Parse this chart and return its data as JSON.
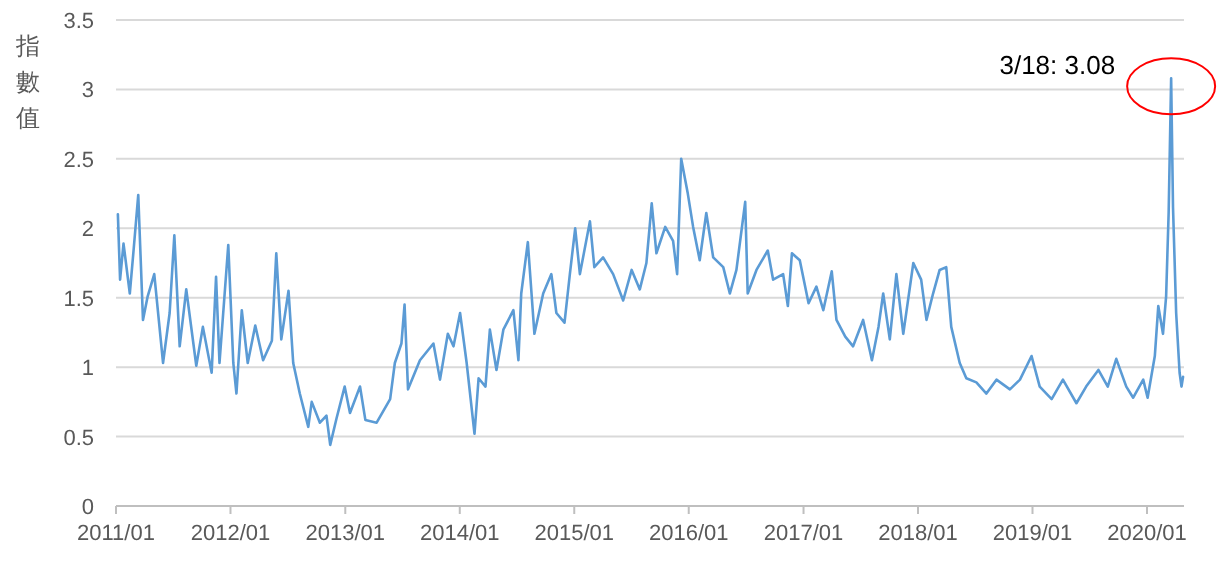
{
  "chart_data": {
    "type": "line",
    "ylabel": "指數值",
    "x": [
      "2011-01-07",
      "2011-01-14",
      "2011-01-25",
      "2011-02-14",
      "2011-02-26",
      "2011-03-13",
      "2011-03-28",
      "2011-04-12",
      "2011-05-03",
      "2011-05-31",
      "2011-06-21",
      "2011-07-06",
      "2011-07-23",
      "2011-08-13",
      "2011-09-14",
      "2011-10-05",
      "2011-11-02",
      "2011-11-16",
      "2011-11-27",
      "2011-12-25",
      "2012-01-10",
      "2012-01-20",
      "2012-02-06",
      "2012-02-25",
      "2012-03-20",
      "2012-04-14",
      "2012-05-12",
      "2012-05-26",
      "2012-06-11",
      "2012-07-04",
      "2012-07-19",
      "2012-08-09",
      "2012-09-05",
      "2012-09-16",
      "2012-10-12",
      "2012-11-02",
      "2012-11-14",
      "2012-12-04",
      "2012-12-30",
      "2013-01-16",
      "2013-02-17",
      "2013-03-06",
      "2013-04-11",
      "2013-05-24",
      "2013-06-08",
      "2013-06-29",
      "2013-07-09",
      "2013-07-20",
      "2013-08-27",
      "2013-10-09",
      "2013-10-30",
      "2013-11-24",
      "2013-12-12",
      "2014-01-02",
      "2014-01-23",
      "2014-02-17",
      "2014-03-02",
      "2014-03-24",
      "2014-04-07",
      "2014-04-28",
      "2014-05-20",
      "2014-06-21",
      "2014-07-07",
      "2014-07-16",
      "2014-08-06",
      "2014-08-27",
      "2014-09-24",
      "2014-10-20",
      "2014-11-05",
      "2014-12-01",
      "2014-12-18",
      "2015-01-04",
      "2015-01-19",
      "2015-02-20",
      "2015-03-06",
      "2015-04-03",
      "2015-05-05",
      "2015-06-06",
      "2015-07-03",
      "2015-07-29",
      "2015-08-19",
      "2015-09-05",
      "2015-09-20",
      "2015-10-18",
      "2015-11-12",
      "2015-11-25",
      "2015-12-08",
      "2015-12-29",
      "2016-01-15",
      "2016-02-05",
      "2016-02-26",
      "2016-03-19",
      "2016-04-20",
      "2016-05-11",
      "2016-06-01",
      "2016-06-29",
      "2016-07-07",
      "2016-08-04",
      "2016-09-09",
      "2016-09-26",
      "2016-10-28",
      "2016-11-12",
      "2016-11-25",
      "2016-12-20",
      "2017-01-17",
      "2017-02-11",
      "2017-03-05",
      "2017-04-01",
      "2017-04-16",
      "2017-05-14",
      "2017-06-08",
      "2017-07-10",
      "2017-08-07",
      "2017-08-28",
      "2017-09-12",
      "2017-10-03",
      "2017-10-24",
      "2017-11-15",
      "2017-12-17",
      "2018-01-11",
      "2018-01-28",
      "2018-02-18",
      "2018-03-11",
      "2018-04-01",
      "2018-04-17",
      "2018-05-14",
      "2018-06-04",
      "2018-07-06",
      "2018-08-07",
      "2018-09-08",
      "2018-10-21",
      "2018-11-22",
      "2018-12-29",
      "2019-01-24",
      "2019-03-03",
      "2019-04-08",
      "2019-05-21",
      "2019-06-21",
      "2019-07-30",
      "2019-08-29",
      "2019-09-25",
      "2019-10-27",
      "2019-11-18",
      "2019-12-20",
      "2020-01-03",
      "2020-01-26",
      "2020-02-06",
      "2020-02-21",
      "2020-03-02",
      "2020-03-10",
      "2020-03-18",
      "2020-03-24",
      "2020-04-03",
      "2020-04-14",
      "2020-04-20",
      "2020-04-25"
    ],
    "series": [
      {
        "color": "#5b9bd5",
        "values": [
          2.1,
          1.63,
          1.89,
          1.53,
          1.84,
          2.24,
          1.34,
          1.51,
          1.67,
          1.03,
          1.39,
          1.95,
          1.15,
          1.56,
          1.01,
          1.29,
          0.96,
          1.65,
          1.03,
          1.88,
          1.03,
          0.81,
          1.41,
          1.03,
          1.3,
          1.05,
          1.19,
          1.82,
          1.2,
          1.55,
          1.03,
          0.81,
          0.57,
          0.75,
          0.6,
          0.65,
          0.44,
          0.63,
          0.86,
          0.67,
          0.86,
          0.62,
          0.6,
          0.77,
          1.03,
          1.17,
          1.45,
          0.84,
          1.05,
          1.17,
          0.91,
          1.24,
          1.15,
          1.39,
          1.03,
          0.52,
          0.92,
          0.86,
          1.27,
          0.98,
          1.27,
          1.41,
          1.05,
          1.53,
          1.9,
          1.24,
          1.53,
          1.67,
          1.39,
          1.32,
          1.67,
          2.0,
          1.67,
          2.05,
          1.72,
          1.79,
          1.67,
          1.48,
          1.7,
          1.56,
          1.75,
          2.18,
          1.82,
          2.01,
          1.91,
          1.67,
          2.5,
          2.25,
          2.01,
          1.77,
          2.11,
          1.79,
          1.72,
          1.53,
          1.7,
          2.19,
          1.53,
          1.7,
          1.84,
          1.63,
          1.67,
          1.44,
          1.82,
          1.77,
          1.46,
          1.58,
          1.41,
          1.69,
          1.34,
          1.22,
          1.15,
          1.34,
          1.05,
          1.29,
          1.53,
          1.2,
          1.67,
          1.24,
          1.75,
          1.63,
          1.34,
          1.53,
          1.7,
          1.72,
          1.29,
          1.03,
          0.92,
          0.89,
          0.81,
          0.91,
          0.84,
          0.91,
          1.08,
          0.86,
          0.77,
          0.91,
          0.74,
          0.86,
          0.98,
          0.86,
          1.06,
          0.86,
          0.78,
          0.91,
          0.78,
          1.08,
          1.44,
          1.24,
          1.51,
          2.11,
          3.08,
          2.15,
          1.39,
          0.96,
          0.86,
          0.93
        ]
      }
    ],
    "xlim": [
      "2011-01-01",
      "2020-04-28"
    ],
    "xticks": [
      {
        "value": "2011-01-01",
        "label": "2011/01"
      },
      {
        "value": "2012-01-01",
        "label": "2012/01"
      },
      {
        "value": "2013-01-01",
        "label": "2013/01"
      },
      {
        "value": "2014-01-01",
        "label": "2014/01"
      },
      {
        "value": "2015-01-01",
        "label": "2015/01"
      },
      {
        "value": "2016-01-01",
        "label": "2016/01"
      },
      {
        "value": "2017-01-01",
        "label": "2017/01"
      },
      {
        "value": "2018-01-01",
        "label": "2018/01"
      },
      {
        "value": "2019-01-01",
        "label": "2019/01"
      },
      {
        "value": "2020-01-01",
        "label": "2020/01"
      }
    ],
    "ylim": [
      0,
      3.5
    ],
    "yticks": [
      0,
      0.5,
      1,
      1.5,
      2,
      2.5,
      3,
      3.5
    ],
    "grid": "y",
    "annotations": [
      {
        "text": "3/18: 3.08",
        "x": "2020-03-18",
        "y": 3.08
      }
    ]
  }
}
